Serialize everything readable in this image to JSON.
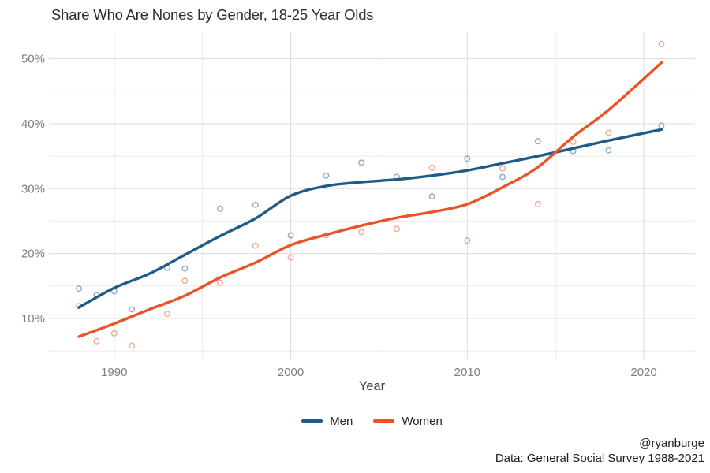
{
  "chart_data": {
    "type": "scatter",
    "title": "Share Who Are Nones by Gender, 18-25 Year Olds",
    "xlabel": "Year",
    "caption_line1": "@ryanburge",
    "caption_line2": "Data: General Social Survey 1988-2021",
    "background": "#ffffff",
    "grid": {
      "major_color": "#dcdcdc",
      "minor_color": "#ebebeb"
    },
    "legend_position": "bottom-center",
    "x_axis": {
      "min": 1986.3,
      "max": 2022.9,
      "ticks": [
        {
          "value": 1990,
          "label": "1990"
        },
        {
          "value": 2000,
          "label": "2000"
        },
        {
          "value": 2010,
          "label": "2010"
        },
        {
          "value": 2020,
          "label": "2020"
        }
      ],
      "major_gridlines": [
        1990,
        2000,
        2010,
        2020
      ],
      "minor_gridlines": [
        1995,
        2005,
        2015
      ]
    },
    "y_axis": {
      "min": 3.8,
      "max": 54.2,
      "ticks": [
        {
          "value": 10,
          "label": "10%"
        },
        {
          "value": 20,
          "label": "20%"
        },
        {
          "value": 30,
          "label": "30%"
        },
        {
          "value": 40,
          "label": "40%"
        },
        {
          "value": 50,
          "label": "50%"
        }
      ],
      "major_gridlines": [
        10,
        20,
        30,
        40,
        50
      ],
      "minor_gridlines": [
        5,
        15,
        25,
        35,
        45
      ]
    },
    "series": [
      {
        "name": "Men",
        "color": "#1f5b88",
        "point_opacity": 0.5,
        "points": {
          "x": [
            1988,
            1989,
            1990,
            1991,
            1993,
            1994,
            1996,
            1998,
            2000,
            2002,
            2004,
            2006,
            2008,
            2010,
            2012,
            2014,
            2016,
            2018,
            2021
          ],
          "y": [
            14.6,
            13.6,
            14.2,
            11.4,
            17.8,
            17.7,
            26.9,
            27.5,
            22.8,
            32.0,
            34.0,
            31.8,
            28.8,
            34.6,
            31.8,
            37.3,
            35.8,
            35.9,
            39.7
          ]
        },
        "trend": {
          "x": [
            1988,
            1990,
            1992,
            1994,
            1996,
            1998,
            2000,
            2002,
            2004,
            2006,
            2008,
            2010,
            2012,
            2014,
            2016,
            2018,
            2021
          ],
          "y": [
            11.7,
            14.7,
            16.9,
            19.8,
            22.7,
            25.4,
            28.9,
            30.4,
            31.0,
            31.4,
            32.0,
            32.8,
            33.9,
            35.0,
            36.2,
            37.4,
            39.1
          ]
        }
      },
      {
        "name": "Women",
        "color": "#ea5327",
        "point_opacity": 0.5,
        "points": {
          "x": [
            1988,
            1989,
            1990,
            1991,
            1993,
            1994,
            1996,
            1998,
            2000,
            2002,
            2004,
            2006,
            2008,
            2010,
            2012,
            2014,
            2016,
            2018,
            2021
          ],
          "y": [
            11.9,
            6.5,
            7.7,
            5.8,
            10.7,
            15.8,
            15.5,
            21.2,
            19.4,
            22.8,
            23.3,
            23.8,
            33.2,
            22.0,
            33.1,
            27.6,
            37.2,
            38.6,
            52.3
          ]
        },
        "trend": {
          "x": [
            1988,
            1990,
            1992,
            1994,
            1996,
            1998,
            2000,
            2002,
            2004,
            2006,
            2008,
            2010,
            2012,
            2014,
            2016,
            2018,
            2021
          ],
          "y": [
            7.2,
            9.2,
            11.4,
            13.5,
            16.3,
            18.6,
            21.3,
            22.9,
            24.3,
            25.5,
            26.4,
            27.6,
            30.2,
            33.3,
            38.0,
            42.1,
            49.4
          ]
        }
      }
    ]
  }
}
